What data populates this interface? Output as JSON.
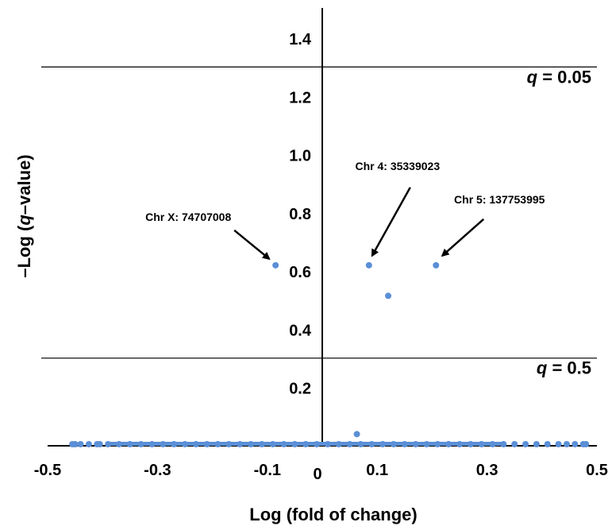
{
  "chart_data": {
    "type": "scatter",
    "title": "",
    "xlabel": "Log (fold of change)",
    "ylabel": {
      "pre": "–Log (",
      "italic": "q",
      "post": "–value)"
    },
    "xlim": [
      -0.5,
      0.5
    ],
    "ylim": [
      0,
      1.5
    ],
    "x_ticks": [
      {
        "value": -0.5,
        "label": "-0.5"
      },
      {
        "value": -0.3,
        "label": "-0.3"
      },
      {
        "value": -0.1,
        "label": "-0.1"
      },
      {
        "value": 0.0,
        "label": "0"
      },
      {
        "value": 0.1,
        "label": "0.1"
      },
      {
        "value": 0.3,
        "label": "0.3"
      },
      {
        "value": 0.5,
        "label": "0.5"
      }
    ],
    "y_ticks": [
      {
        "value": 0.2,
        "label": "0.2"
      },
      {
        "value": 0.4,
        "label": "0.4"
      },
      {
        "value": 0.6,
        "label": "0.6"
      },
      {
        "value": 0.8,
        "label": "0.8"
      },
      {
        "value": 1.0,
        "label": "1.0"
      },
      {
        "value": 1.2,
        "label": "1.2"
      },
      {
        "value": 1.4,
        "label": "1.4"
      }
    ],
    "point_color": "#5b8fd6",
    "grid": false,
    "thresholds": [
      {
        "y": 1.301,
        "var": "q",
        "text": " = 0.05"
      },
      {
        "y": 0.301,
        "var": "q",
        "text": " = 0.5"
      }
    ],
    "points": [
      {
        "x": -0.085,
        "y": 0.62
      },
      {
        "x": 0.085,
        "y": 0.62
      },
      {
        "x": 0.207,
        "y": 0.62
      },
      {
        "x": 0.12,
        "y": 0.515
      },
      {
        "x": 0.063,
        "y": 0.04
      },
      {
        "x": -0.455,
        "y": 0.0
      },
      {
        "x": -0.45,
        "y": 0.0
      },
      {
        "x": -0.44,
        "y": 0.0
      },
      {
        "x": -0.425,
        "y": 0.0
      },
      {
        "x": -0.41,
        "y": 0.0
      },
      {
        "x": -0.405,
        "y": 0.0
      },
      {
        "x": -0.39,
        "y": 0.0
      },
      {
        "x": -0.37,
        "y": 0.0
      },
      {
        "x": -0.35,
        "y": 0.0
      },
      {
        "x": -0.33,
        "y": 0.0
      },
      {
        "x": -0.31,
        "y": 0.0
      },
      {
        "x": -0.29,
        "y": 0.0
      },
      {
        "x": -0.27,
        "y": 0.0
      },
      {
        "x": -0.25,
        "y": 0.0
      },
      {
        "x": -0.23,
        "y": 0.0
      },
      {
        "x": -0.21,
        "y": 0.0
      },
      {
        "x": -0.19,
        "y": 0.0
      },
      {
        "x": -0.17,
        "y": 0.0
      },
      {
        "x": -0.15,
        "y": 0.0
      },
      {
        "x": -0.13,
        "y": 0.0
      },
      {
        "x": -0.11,
        "y": 0.0
      },
      {
        "x": -0.09,
        "y": 0.0
      },
      {
        "x": -0.07,
        "y": 0.0
      },
      {
        "x": -0.05,
        "y": 0.0
      },
      {
        "x": -0.03,
        "y": 0.0
      },
      {
        "x": -0.01,
        "y": 0.0
      },
      {
        "x": 0.01,
        "y": 0.0
      },
      {
        "x": 0.03,
        "y": 0.0
      },
      {
        "x": 0.05,
        "y": 0.0
      },
      {
        "x": 0.07,
        "y": 0.0
      },
      {
        "x": 0.09,
        "y": 0.0
      },
      {
        "x": 0.11,
        "y": 0.0
      },
      {
        "x": 0.13,
        "y": 0.0
      },
      {
        "x": 0.15,
        "y": 0.0
      },
      {
        "x": 0.17,
        "y": 0.0
      },
      {
        "x": 0.19,
        "y": 0.0
      },
      {
        "x": 0.21,
        "y": 0.0
      },
      {
        "x": 0.23,
        "y": 0.0
      },
      {
        "x": 0.25,
        "y": 0.0
      },
      {
        "x": 0.27,
        "y": 0.0
      },
      {
        "x": 0.29,
        "y": 0.0
      },
      {
        "x": 0.31,
        "y": 0.0
      },
      {
        "x": 0.33,
        "y": 0.0
      },
      {
        "x": 0.35,
        "y": 0.0
      },
      {
        "x": 0.37,
        "y": 0.0
      },
      {
        "x": 0.39,
        "y": 0.0
      },
      {
        "x": 0.41,
        "y": 0.0
      },
      {
        "x": 0.43,
        "y": 0.0
      },
      {
        "x": 0.445,
        "y": 0.0
      },
      {
        "x": 0.46,
        "y": 0.0
      },
      {
        "x": 0.475,
        "y": 0.0
      },
      {
        "x": 0.48,
        "y": 0.0
      }
    ],
    "annotations": [
      {
        "text": "Chr X: 74707008",
        "x": -0.085,
        "y": 0.62,
        "side": "left"
      },
      {
        "text": "Chr 4: 35339023",
        "x": 0.085,
        "y": 0.62,
        "side": "top"
      },
      {
        "text": "Chr 5: 137753995",
        "x": 0.207,
        "y": 0.62,
        "side": "right"
      }
    ]
  }
}
